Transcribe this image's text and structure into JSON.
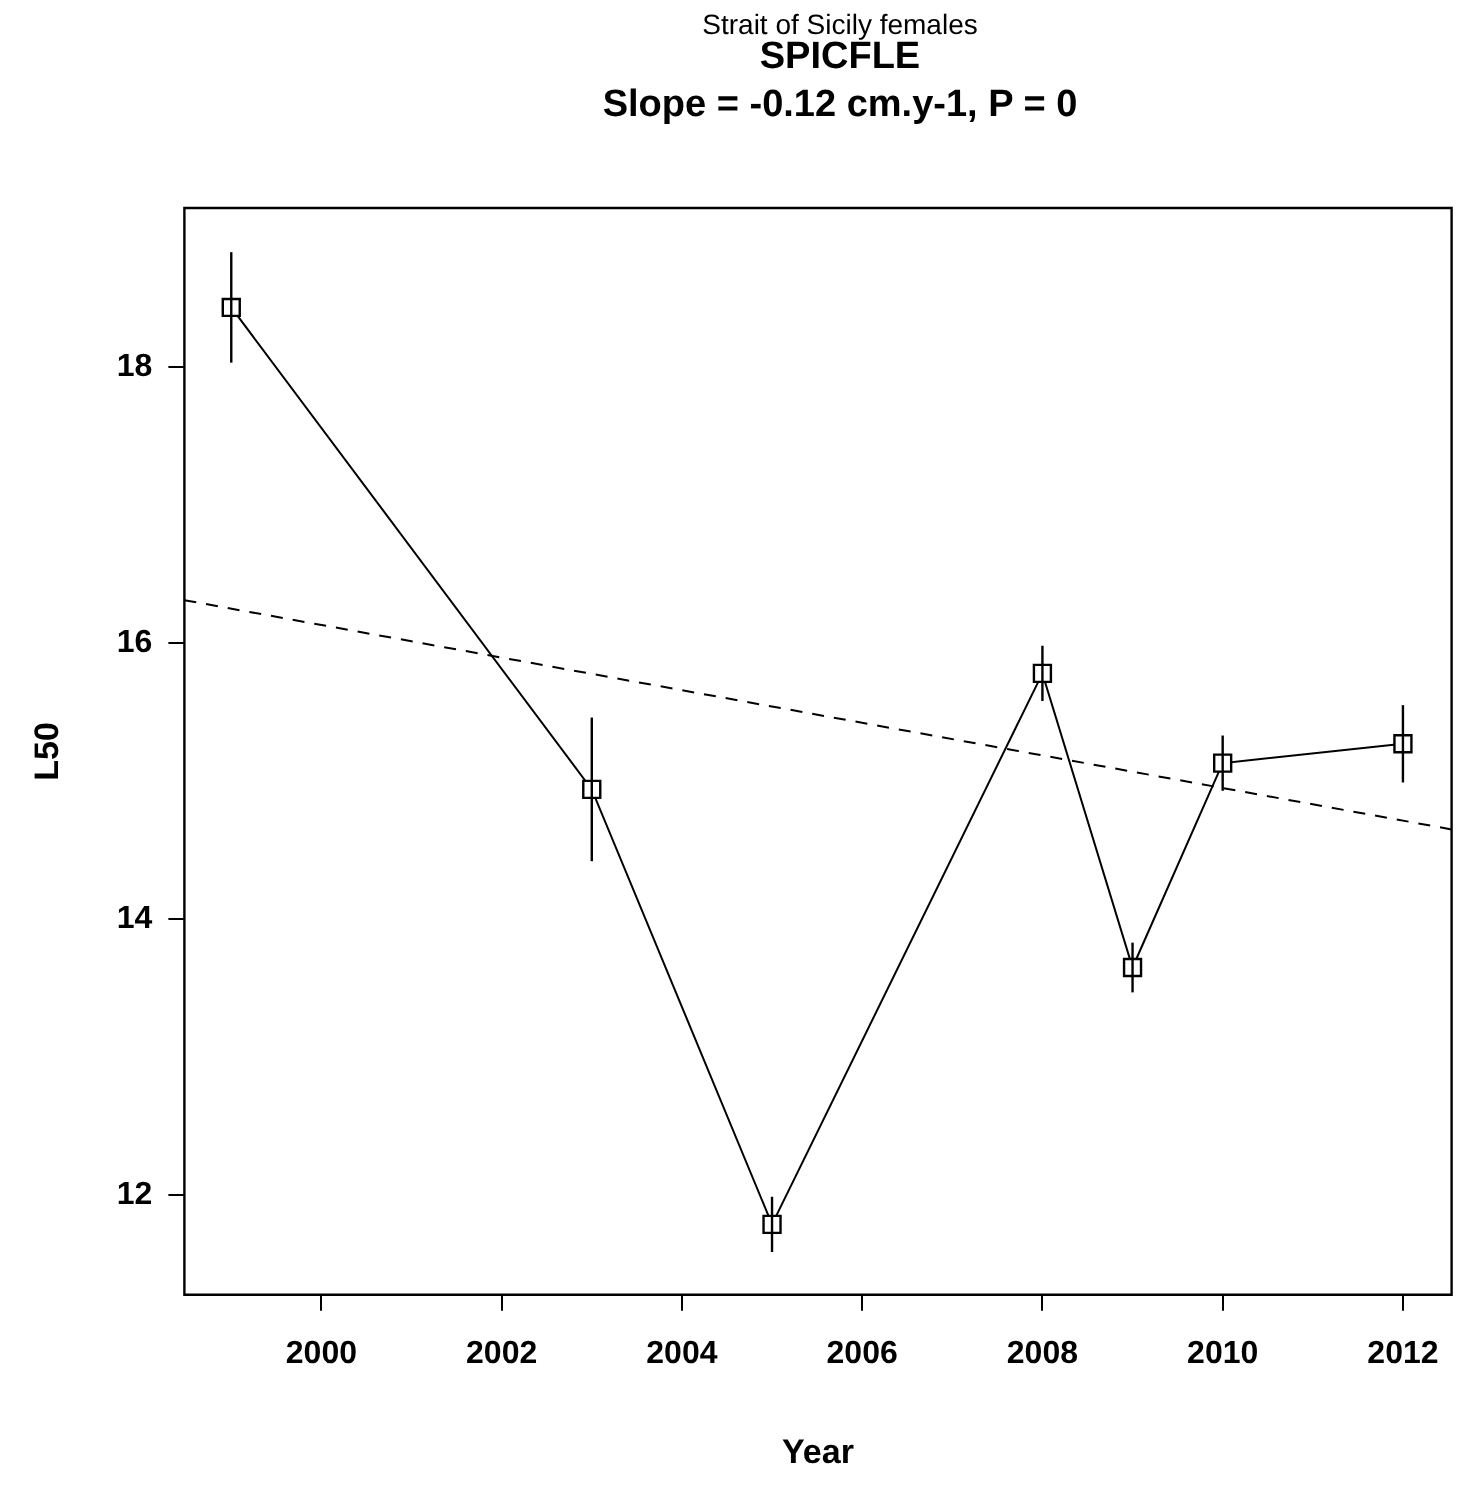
{
  "chart_data": {
    "type": "line",
    "annotations": [
      "Strait of Sicily females"
    ],
    "title": "SPICFLE",
    "subtitle": "Slope = -0.12 cm.y-1, P = 0",
    "xlabel": "Year",
    "ylabel": "L50",
    "xlim": [
      1998.48,
      2012.54
    ],
    "xticks": [
      2000,
      2002,
      2004,
      2006,
      2008,
      2010,
      2012
    ],
    "ylim": [
      11.28,
      19.15
    ],
    "yticks": [
      12,
      14,
      16,
      18
    ],
    "grid": false,
    "marker": "square",
    "series": [
      {
        "color": "#000000",
        "x": [
          1999,
          2003,
          2005,
          2008,
          2009,
          2010,
          2012
        ],
        "values": [
          18.43,
          14.94,
          11.79,
          15.78,
          13.65,
          15.13,
          15.27
        ],
        "errors": [
          0.4,
          0.52,
          0.2,
          0.2,
          0.18,
          0.2,
          0.28
        ]
      },
      {
        "type": "line",
        "color": "#000000",
        "line_style": "dashed",
        "marker": "none",
        "x": [
          1998.48,
          2012.54
        ],
        "values": [
          16.31,
          14.65
        ]
      }
    ]
  }
}
